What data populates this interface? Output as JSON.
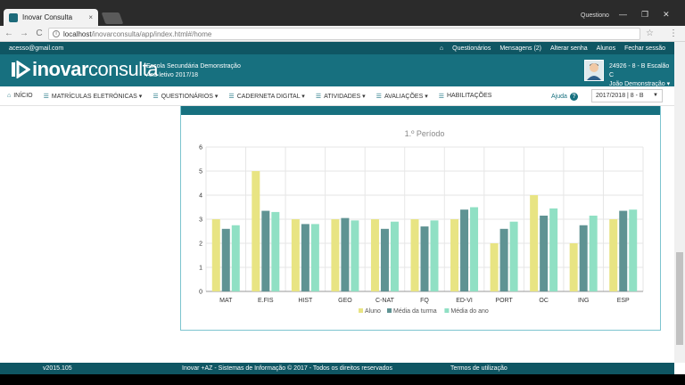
{
  "browser": {
    "tab_title": "Inovar Consulta",
    "tab_close": "×",
    "window_user": "Questiono",
    "url_host": "localhost",
    "url_path": "/inovarconsulta/app/index.html#/home",
    "nav": {
      "back": "←",
      "forward": "→",
      "reload": "C"
    },
    "window_btns": {
      "min": "—",
      "max": "❐",
      "close": "✕"
    }
  },
  "topbar": {
    "email": "acesso@gmail.com",
    "links": [
      "Questionários",
      "Mensagens (2)",
      "Alterar senha",
      "Alunos",
      "Fechar sessão"
    ]
  },
  "brand": {
    "logo_bold": "inovar",
    "logo_light": "consulta",
    "school_name": "Escola Secundária Demonstração",
    "school_year": "Ano letivo 2017/18",
    "user_line1": "24926 - 8 - B Escalão C",
    "user_line2": "João Demonstração ▾"
  },
  "menu": {
    "items": [
      "INÍCIO",
      "MATRÍCULAS ELETRÓNICAS ▾",
      "QUESTIONÁRIOS ▾",
      "CADERNETA DIGITAL ▾",
      "ATIVIDADES ▾",
      "AVALIAÇÕES ▾",
      "HABILITAÇÕES"
    ],
    "help": "Ajuda",
    "year_select": "2017/2018 | 8 - B"
  },
  "footer": {
    "version": "v2015.105",
    "copyright": "Inovar +AZ - Sistemas de Informação © 2017 - Todos os direitos reservados",
    "terms": "Termos de utilização"
  },
  "colors": {
    "header_dark": "#0f5663",
    "header": "#17707f",
    "aluno": "#e8e483",
    "media_turma": "#5f9393",
    "media_ano": "#90e0c4"
  },
  "chart_data": {
    "type": "bar",
    "title": "1.º Período",
    "categories": [
      "MAT",
      "E.FIS",
      "HIST",
      "GEO",
      "C-NAT",
      "FQ",
      "ED-VI",
      "PORT",
      "OC",
      "ING",
      "ESP"
    ],
    "series": [
      {
        "name": "Aluno",
        "values": [
          3,
          5,
          3,
          3,
          3,
          3,
          3,
          2,
          4,
          2,
          3
        ]
      },
      {
        "name": "Média da turma",
        "values": [
          2.6,
          3.35,
          2.8,
          3.05,
          2.6,
          2.7,
          3.4,
          2.6,
          3.15,
          2.75,
          3.35
        ]
      },
      {
        "name": "Média do ano",
        "values": [
          2.75,
          3.3,
          2.8,
          2.95,
          2.9,
          2.95,
          3.5,
          2.9,
          3.45,
          3.15,
          3.4
        ]
      }
    ],
    "yticks": [
      0,
      1,
      2,
      3,
      4,
      5,
      6
    ],
    "ylim": [
      0,
      6
    ],
    "grid": true,
    "legend": "bottom"
  }
}
